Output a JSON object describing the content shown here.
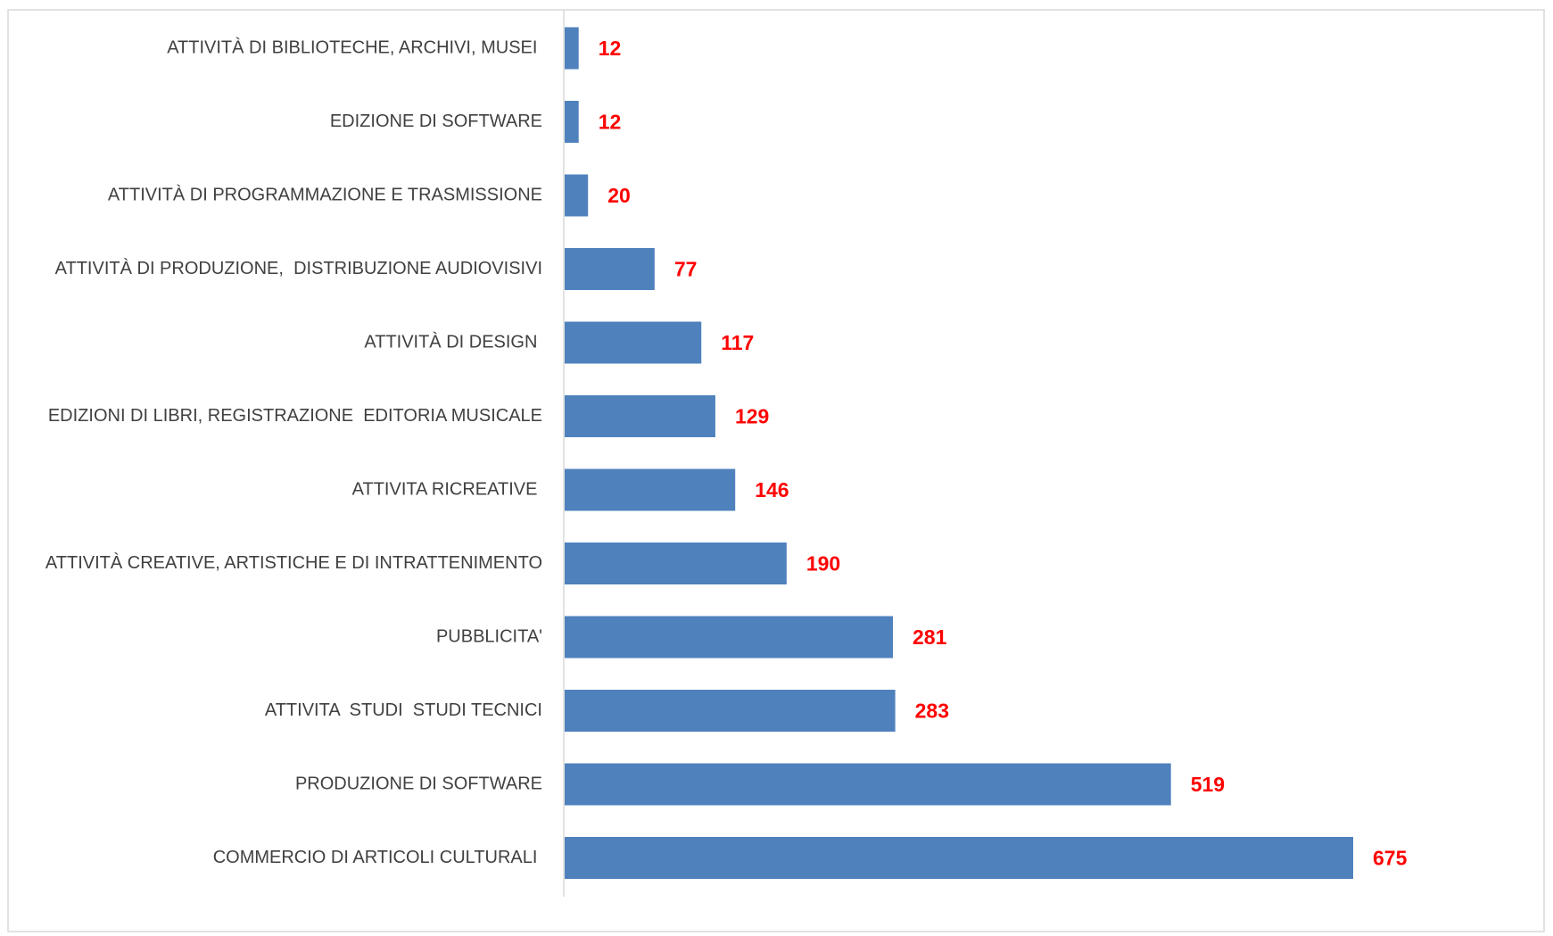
{
  "chart_data": {
    "type": "bar",
    "orientation": "horizontal",
    "categories": [
      "ATTIVITÀ DI BIBLIOTECHE, ARCHIVI, MUSEI ",
      "EDIZIONE DI SOFTWARE",
      "ATTIVITÀ DI PROGRAMMAZIONE E TRASMISSIONE",
      "ATTIVITÀ DI PRODUZIONE,  DISTRIBUZIONE AUDIOVISIVI",
      "ATTIVITÀ DI DESIGN ",
      "EDIZIONI DI LIBRI, REGISTRAZIONE  EDITORIA MUSICALE",
      "ATTIVITA RICREATIVE ",
      "ATTIVITÀ CREATIVE, ARTISTICHE E DI INTRATTENIMENTO",
      "PUBBLICITA'",
      "ATTIVITA  STUDI  STUDI TECNICI",
      "PRODUZIONE DI SOFTWARE",
      "COMMERCIO DI ARTICOLI CULTURALI "
    ],
    "values": [
      12,
      12,
      20,
      77,
      117,
      129,
      146,
      190,
      281,
      283,
      519,
      675
    ],
    "color": "#4f81bd",
    "label_color": "#ff0000"
  }
}
